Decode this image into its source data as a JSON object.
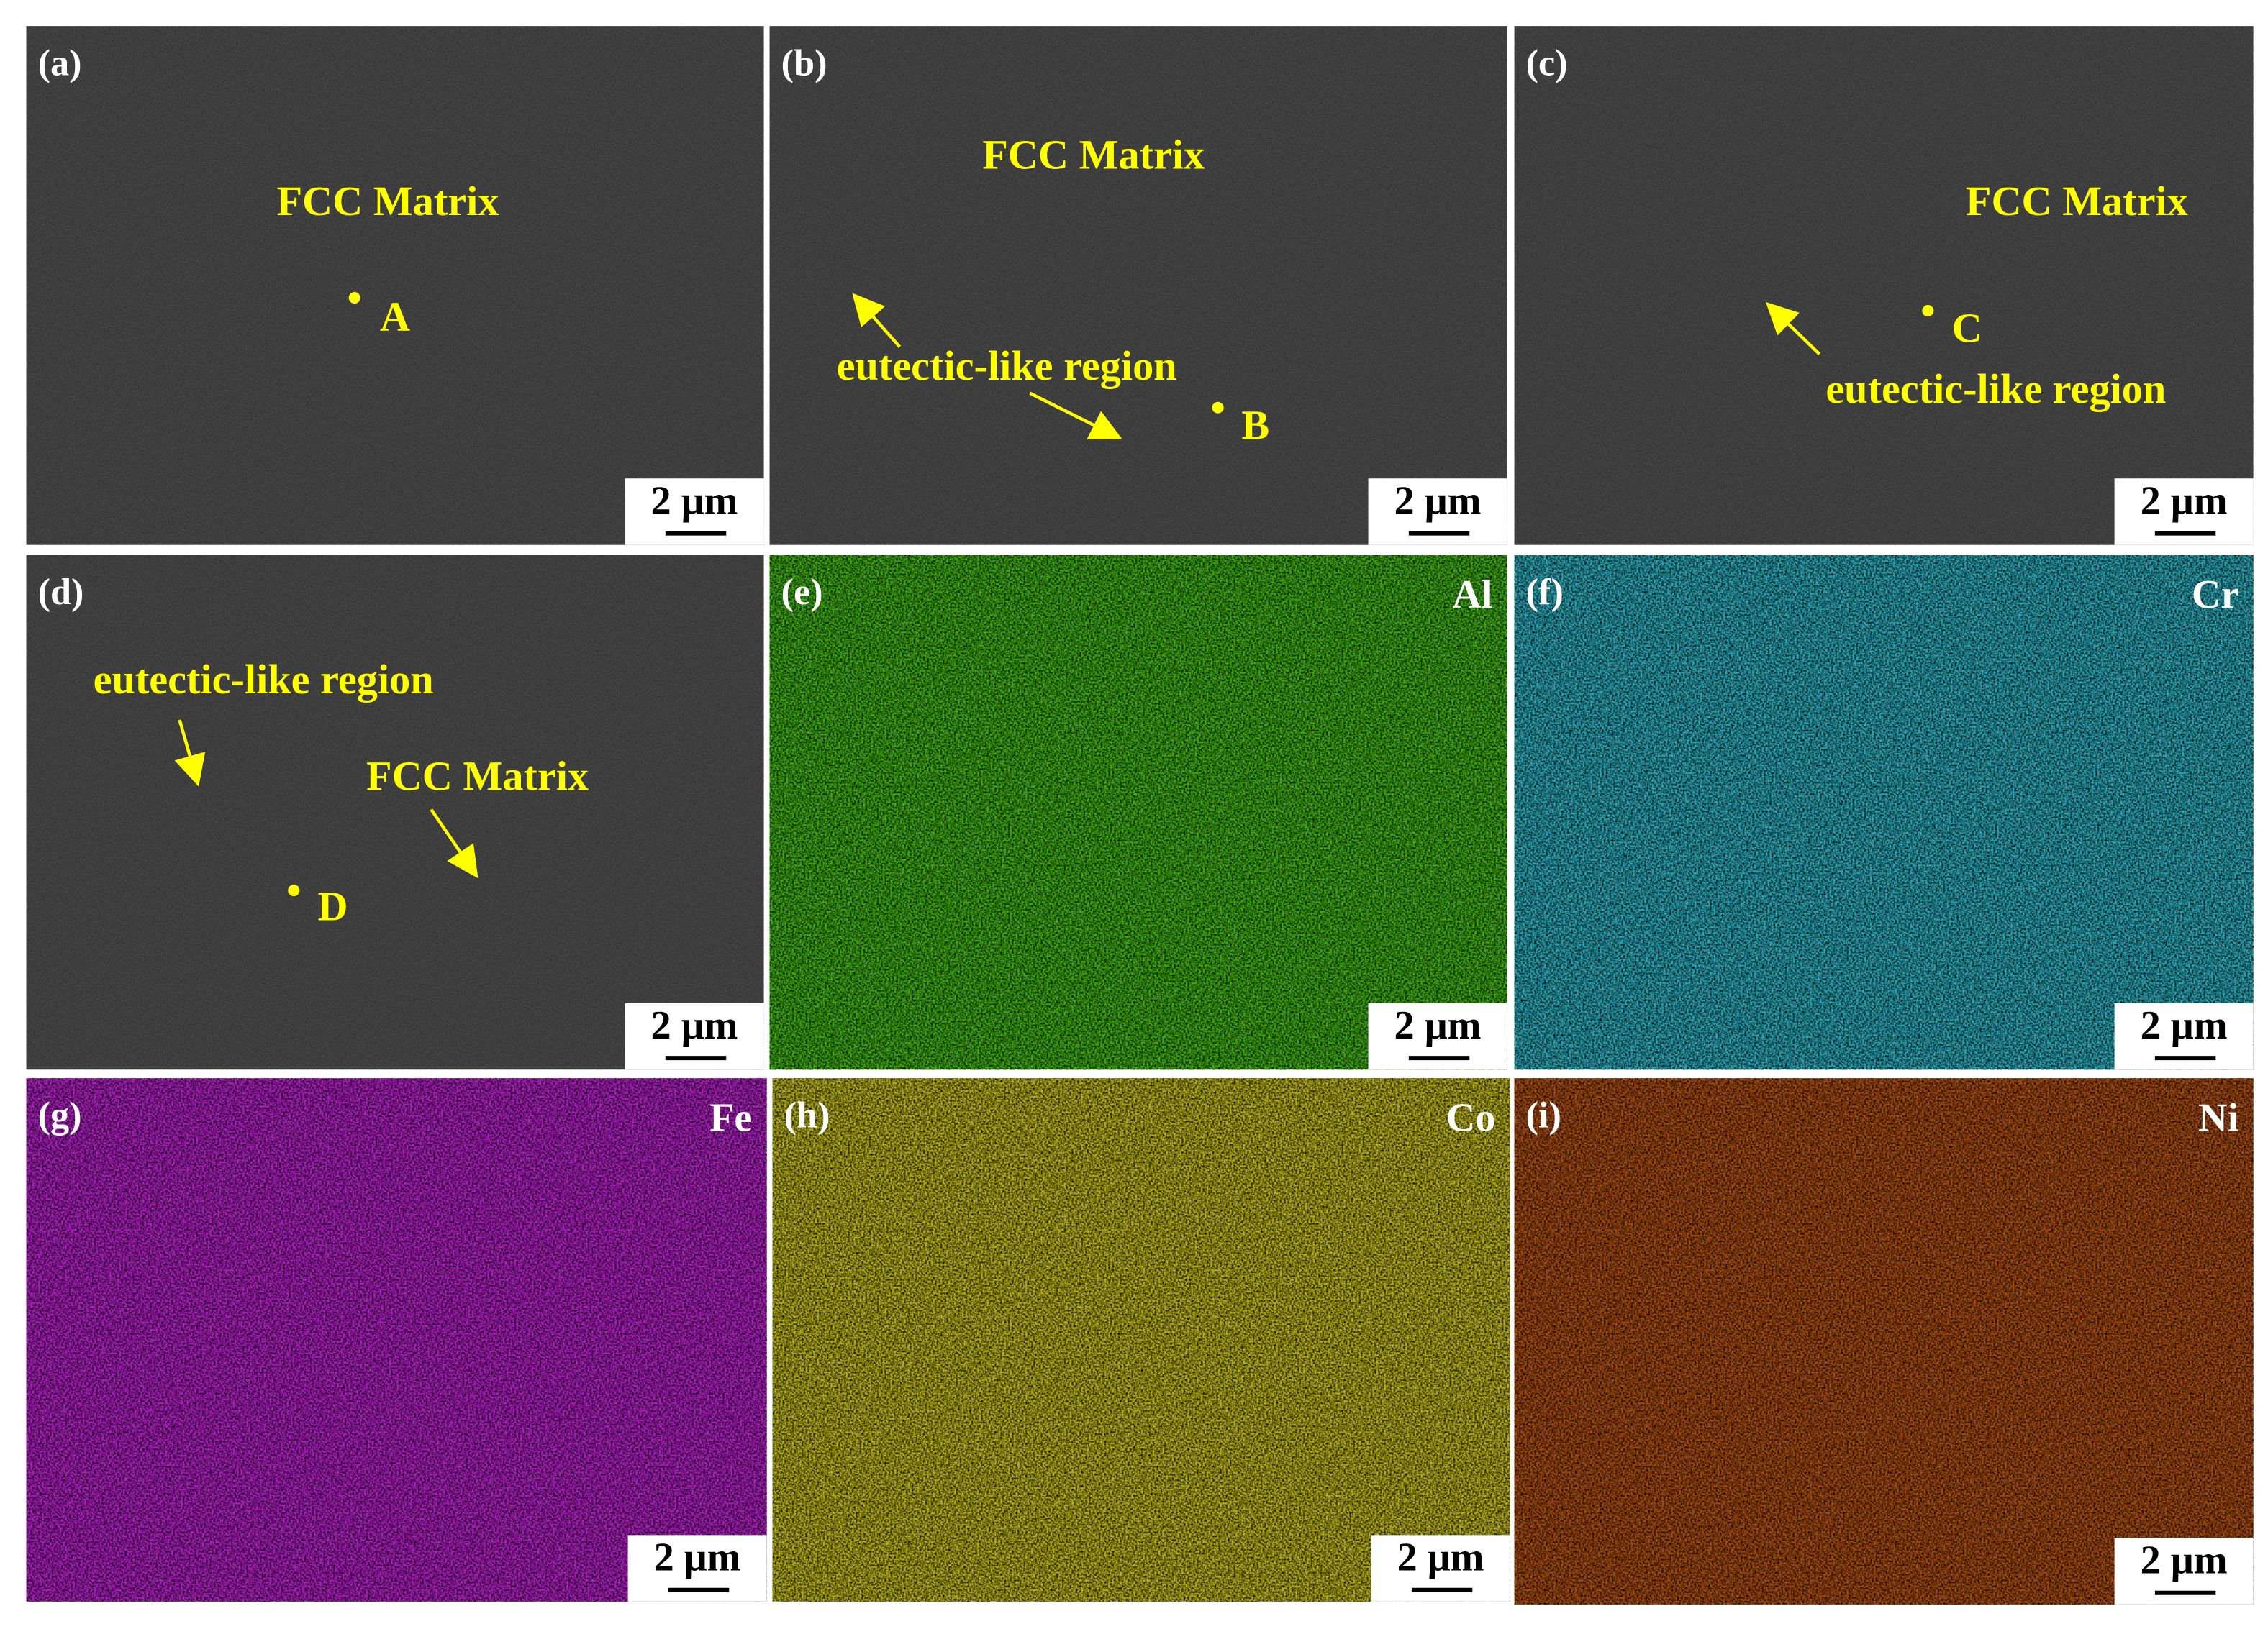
{
  "panels": [
    {
      "label": "(a)",
      "annotations": [
        "FCC Matrix",
        "A"
      ],
      "scale_bar": "2 μm"
    },
    {
      "label": "(b)",
      "annotations": [
        "FCC Matrix",
        "eutectic-like region",
        "B"
      ],
      "scale_bar": "2 μm"
    },
    {
      "label": "(c)",
      "annotations": [
        "FCC Matrix",
        "C",
        "eutectic-like region"
      ],
      "scale_bar": "2 μm"
    },
    {
      "label": "(d)",
      "annotations": [
        "eutectic-like region",
        "FCC Matrix",
        "D"
      ],
      "scale_bar": "2 μm"
    },
    {
      "label": "(e)",
      "element": "Al",
      "scale_bar": "2 μm"
    },
    {
      "label": "(f)",
      "element": "Cr",
      "scale_bar": "2 μm"
    },
    {
      "label": "(g)",
      "element": "Fe",
      "scale_bar": "2 μm"
    },
    {
      "label": "(h)",
      "element": "Co",
      "scale_bar": "2 μm"
    },
    {
      "label": "(i)",
      "element": "Ni",
      "scale_bar": "2 μm"
    }
  ]
}
